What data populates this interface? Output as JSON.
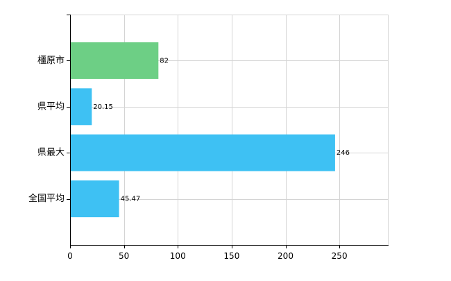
{
  "chart_data": {
    "type": "bar",
    "orientation": "horizontal",
    "categories": [
      "橿原市",
      "県平均",
      "県最大",
      "全国平均"
    ],
    "values": [
      82,
      20.15,
      246,
      45.47
    ],
    "value_labels": [
      "82",
      "20.15",
      "246",
      "45.47"
    ],
    "bar_colors": [
      "#6dcf85",
      "#3ec1f3",
      "#3ec1f3",
      "#3ec1f3"
    ],
    "xlim": [
      0,
      295
    ],
    "x_ticks": [
      0,
      50,
      100,
      150,
      200,
      250
    ],
    "x_tick_labels": [
      "0",
      "50",
      "100",
      "150",
      "200",
      "250"
    ],
    "grid": true,
    "title": "",
    "xlabel": "",
    "ylabel": ""
  },
  "colors": {
    "highlight": "#6dcf85",
    "default": "#3ec1f3",
    "grid": "#d4d4d4",
    "axis": "#000000"
  }
}
